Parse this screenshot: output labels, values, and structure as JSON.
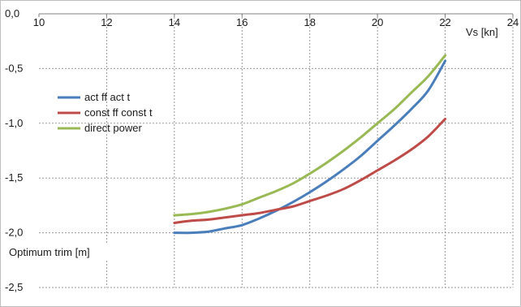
{
  "chart_data": {
    "type": "line",
    "title": "",
    "xlabel": "Vs [kn]",
    "ylabel": "Optimum trim [m]",
    "xlim": [
      10,
      24
    ],
    "ylim": [
      -2.5,
      0.0
    ],
    "x_ticks": [
      10,
      12,
      14,
      16,
      18,
      20,
      22,
      24
    ],
    "x_tick_labels": [
      "10",
      "12",
      "14",
      "16",
      "18",
      "20",
      "22",
      "24"
    ],
    "y_ticks": [
      0.0,
      -0.5,
      -1.0,
      -1.5,
      -2.0,
      -2.5
    ],
    "y_tick_labels": [
      "0,0",
      "-0,5",
      "-1,0",
      "-1,5",
      "-2,0",
      "-2,5"
    ],
    "x_axis_position": "top (at y = 0)",
    "grid": true,
    "legend_position": "left",
    "series": [
      {
        "name": "act ff act t",
        "color": "#4a7ebb",
        "x": [
          14,
          14.5,
          15,
          15.5,
          16,
          16.5,
          17,
          17.5,
          18,
          18.5,
          19,
          19.5,
          20,
          20.5,
          21,
          21.5,
          22
        ],
        "y": [
          -2.0,
          -2.0,
          -1.99,
          -1.96,
          -1.93,
          -1.87,
          -1.8,
          -1.72,
          -1.63,
          -1.53,
          -1.42,
          -1.3,
          -1.16,
          -1.02,
          -0.87,
          -0.7,
          -0.43
        ]
      },
      {
        "name": "const ff const t",
        "color": "#be4b48",
        "x": [
          14,
          14.5,
          15,
          15.5,
          16,
          16.5,
          17,
          17.5,
          18,
          18.5,
          19,
          19.5,
          20,
          20.5,
          21,
          21.5,
          22
        ],
        "y": [
          -1.91,
          -1.89,
          -1.88,
          -1.86,
          -1.84,
          -1.82,
          -1.79,
          -1.76,
          -1.71,
          -1.66,
          -1.6,
          -1.52,
          -1.43,
          -1.34,
          -1.24,
          -1.12,
          -0.96
        ]
      },
      {
        "name": "direct power",
        "color": "#98b954",
        "x": [
          14,
          14.5,
          15,
          15.5,
          16,
          16.5,
          17,
          17.5,
          18,
          18.5,
          19,
          19.5,
          20,
          20.5,
          21,
          21.5,
          22
        ],
        "y": [
          -1.84,
          -1.83,
          -1.81,
          -1.78,
          -1.74,
          -1.68,
          -1.62,
          -1.55,
          -1.46,
          -1.36,
          -1.25,
          -1.13,
          -1.0,
          -0.87,
          -0.72,
          -0.57,
          -0.38
        ]
      }
    ]
  }
}
